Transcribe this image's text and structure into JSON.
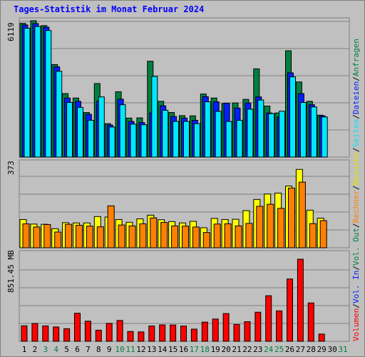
{
  "title": "Tages-Statistik im Monat Februar 2024",
  "chart_data": [
    {
      "type": "bar",
      "name": "hits",
      "ylabel": "6119",
      "ylim": [
        0,
        6119
      ],
      "categories": [
        "1",
        "2",
        "3",
        "4",
        "5",
        "6",
        "7",
        "8",
        "9",
        "10",
        "11",
        "12",
        "13",
        "14",
        "15",
        "16",
        "17",
        "18",
        "19",
        "20",
        "21",
        "22",
        "23",
        "24",
        "25",
        "26",
        "27",
        "28",
        "29",
        "30",
        "31"
      ],
      "series": [
        {
          "name": "Anfragen",
          "color": "#008040",
          "values": [
            6000,
            6119,
            5900,
            4150,
            2850,
            2650,
            2000,
            3300,
            1500,
            2930,
            1750,
            1760,
            4300,
            2500,
            2000,
            1860,
            1850,
            2830,
            2650,
            2400,
            2430,
            2590,
            3960,
            2290,
            1980,
            4770,
            3370,
            2500,
            1880,
            0,
            0
          ]
        },
        {
          "name": "Dateien",
          "color": "#0020ff",
          "values": [
            5930,
            5990,
            5830,
            4050,
            2650,
            2500,
            1920,
            2500,
            1440,
            2600,
            1600,
            1550,
            1980,
            2300,
            1820,
            1750,
            1650,
            2710,
            2480,
            2420,
            2200,
            2430,
            2700,
            1980,
            1800,
            3780,
            2850,
            2350,
            1850,
            0,
            0
          ]
        },
        {
          "name": "Seiten",
          "color": "#00e8ff",
          "values": [
            5780,
            5860,
            5680,
            3850,
            2450,
            2230,
            1650,
            2700,
            1350,
            2350,
            1480,
            1450,
            3620,
            2100,
            1600,
            1600,
            1500,
            2480,
            2050,
            1600,
            1650,
            2150,
            2560,
            1950,
            2060,
            3600,
            2450,
            2250,
            1800,
            0,
            0
          ]
        }
      ]
    },
    {
      "type": "bar",
      "name": "visits",
      "ylabel": "373",
      "ylim": [
        0,
        373
      ],
      "series": [
        {
          "name": "Besuche",
          "color": "#ffff00",
          "values": [
            124,
            104,
            103,
            84,
            110,
            109,
            109,
            137,
            135,
            124,
            112,
            127,
            143,
            123,
            115,
            109,
            116,
            88,
            129,
            124,
            125,
            163,
            212,
            236,
            240,
            271,
            344,
            165,
            130,
            0,
            0
          ]
        },
        {
          "name": "Rechner",
          "color": "#ff8000",
          "values": [
            105,
            91,
            102,
            69,
            103,
            99,
            95,
            92,
            184,
            100,
            96,
            105,
            131,
            111,
            96,
            95,
            91,
            67,
            104,
            105,
            96,
            107,
            182,
            191,
            173,
            262,
            288,
            106,
            119,
            0,
            0
          ]
        }
      ]
    },
    {
      "type": "bar",
      "name": "volume",
      "ylabel": "851.45 MB",
      "ylim": [
        0,
        851.45
      ],
      "series": [
        {
          "name": "Volumen",
          "color": "#ff0000",
          "values": [
            150,
            173,
            149,
            139,
            122,
            272,
            195,
            108,
            174,
            202,
            95,
            91,
            148,
            159,
            158,
            148,
            118,
            186,
            216,
            269,
            163,
            190,
            282,
            442,
            295,
            604,
            796,
            372,
            70,
            0,
            0
          ]
        }
      ]
    }
  ],
  "days": [
    "1",
    "2",
    "3",
    "4",
    "5",
    "6",
    "7",
    "8",
    "9",
    "10",
    "11",
    "12",
    "13",
    "14",
    "15",
    "16",
    "17",
    "18",
    "19",
    "20",
    "21",
    "22",
    "23",
    "24",
    "25",
    "26",
    "27",
    "28",
    "29",
    "30",
    "31"
  ],
  "weekend_days": [
    "3",
    "4",
    "10",
    "11",
    "17",
    "18",
    "24",
    "25",
    "31"
  ],
  "legend": {
    "parts": [
      "Volumen",
      "/",
      "Vol. In",
      "/",
      "Vol. Out",
      "/",
      "Rechner",
      "/",
      "Besuche",
      "/",
      "Seiten",
      "/",
      "Dateien",
      "/",
      "Anfragen"
    ],
    "colors": [
      "#ff0000",
      "#000000",
      "#0020ff",
      "#000000",
      "#008040",
      "#000000",
      "#ff8000",
      "#000000",
      "#e0e000",
      "#000000",
      "#00e8ff",
      "#000000",
      "#0020ff",
      "#000000",
      "#008040"
    ]
  },
  "colors": {
    "weekday": "#000000",
    "weekend": "#008040"
  }
}
